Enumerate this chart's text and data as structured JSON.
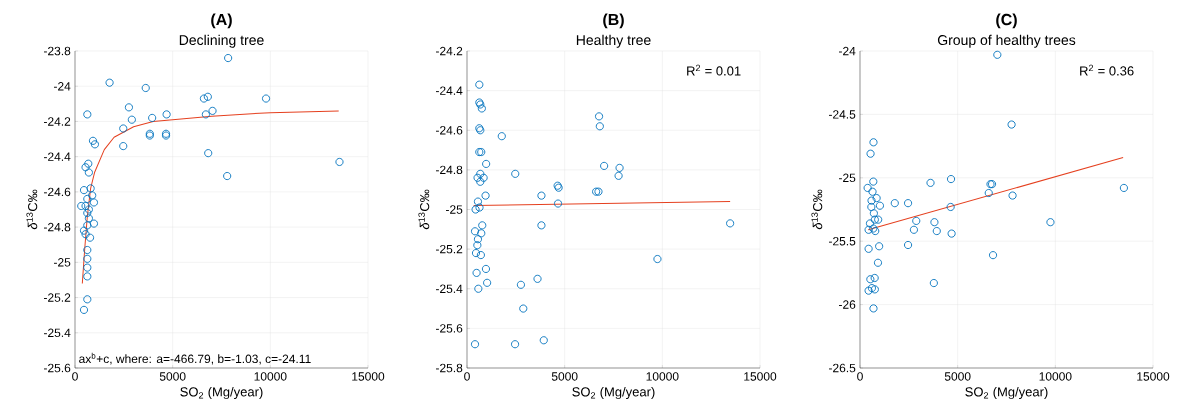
{
  "chart_data": [
    {
      "type": "scatter",
      "title": "(A)",
      "subtitle": "Declining tree",
      "xlabel": "SO$_{2}$ (Mg/year)",
      "ylabel": "*δ*$^{13}$C‰",
      "xlim": [
        0,
        15000
      ],
      "xticks": [
        0,
        5000,
        10000,
        15000
      ],
      "ylim": [
        -25.6,
        -23.8
      ],
      "yticks": [
        -25.6,
        -25.4,
        -25.2,
        -25,
        -24.8,
        -24.6,
        -24.4,
        -24.2,
        -24,
        -23.8
      ],
      "grid": true,
      "legend": "bottom left",
      "series": [
        {
          "marker": "circle",
          "name": "ax$^{b}$+c, where: a=-466.79, b=-1.03, c=-24.11",
          "color": "#0072bd",
          "x": [
            1770,
            3620,
            7840,
            9780,
            13540,
            7790,
            6820,
            6600,
            6800,
            6700,
            7040,
            4690,
            3950,
            3830,
            3830,
            4660,
            4660,
            2760,
            2910,
            2470,
            2470,
            630,
            920,
            1020,
            680,
            540,
            710,
            460,
            800,
            320,
            970,
            880,
            630,
            630,
            710,
            970,
            460,
            540,
            770,
            630,
            630,
            630,
            630,
            630,
            630,
            460,
            540,
            710
          ],
          "values": [
            -23.98,
            -24.01,
            -23.84,
            -24.07,
            -24.43,
            -24.51,
            -24.38,
            -24.07,
            -24.06,
            -24.16,
            -24.14,
            -24.16,
            -24.18,
            -24.27,
            -24.28,
            -24.27,
            -24.28,
            -24.12,
            -24.19,
            -24.24,
            -24.34,
            -24.16,
            -24.31,
            -24.33,
            -24.44,
            -24.46,
            -24.49,
            -24.59,
            -24.58,
            -24.68,
            -24.66,
            -24.62,
            -24.64,
            -24.72,
            -24.75,
            -24.78,
            -24.82,
            -24.84,
            -24.86,
            -24.79,
            -24.93,
            -24.98,
            -25.03,
            -25.08,
            -25.21,
            -25.27,
            -24.68,
            -24.7
          ]
        },
        {
          "type": "line",
          "marker": "none",
          "color": "#e5401f",
          "x": [
            374,
            500,
            630,
            800,
            1000,
            1500,
            2000,
            3000,
            4000,
            5000,
            7000,
            10000,
            13500
          ],
          "values": [
            -25.12,
            -24.92,
            -24.74,
            -24.58,
            -24.49,
            -24.36,
            -24.29,
            -24.23,
            -24.2,
            -24.19,
            -24.17,
            -24.15,
            -24.14
          ]
        }
      ]
    },
    {
      "type": "scatter",
      "title": "(B)",
      "subtitle": "Healthy tree",
      "xlabel": "SO$_{2}$ (Mg/year)",
      "ylabel": "*δ*$^{13}$C‰",
      "xlim": [
        0,
        15000
      ],
      "xticks": [
        0,
        5000,
        10000,
        15000
      ],
      "ylim": [
        -25.8,
        -24.2
      ],
      "yticks": [
        -25.8,
        -25.6,
        -25.4,
        -25.2,
        -25,
        -24.8,
        -24.6,
        -24.4,
        -24.2
      ],
      "grid": true,
      "annotations": [
        "R$^{2}$ = 0.01"
      ],
      "series": [
        {
          "marker": "circle",
          "color": "#0072bd",
          "x": [
            630,
            630,
            680,
            760,
            630,
            680,
            1780,
            630,
            730,
            980,
            2470,
            680,
            540,
            850,
            680,
            950,
            560,
            640,
            440,
            780,
            410,
            730,
            560,
            530,
            460,
            710,
            490,
            970,
            1030,
            580,
            2760,
            3610,
            2880,
            410,
            2460,
            3930,
            3810,
            3810,
            4640,
            4690,
            4660,
            6760,
            6800,
            7020,
            6610,
            6730,
            7810,
            7760,
            9750,
            13470
          ],
          "values": [
            -24.37,
            -24.46,
            -24.47,
            -24.49,
            -24.59,
            -24.6,
            -24.63,
            -24.71,
            -24.71,
            -24.77,
            -24.82,
            -24.82,
            -24.84,
            -24.84,
            -24.86,
            -24.93,
            -24.96,
            -24.99,
            -25.0,
            -25.08,
            -25.11,
            -25.12,
            -25.15,
            -25.18,
            -25.22,
            -25.23,
            -25.32,
            -25.3,
            -25.37,
            -25.4,
            -25.38,
            -25.35,
            -25.5,
            -25.68,
            -25.68,
            -25.66,
            -24.93,
            -25.08,
            -24.88,
            -24.89,
            -24.97,
            -24.53,
            -24.58,
            -24.78,
            -24.91,
            -24.91,
            -24.79,
            -24.83,
            -25.25,
            -25.07
          ]
        },
        {
          "type": "line",
          "marker": "none",
          "color": "#e5401f",
          "x": [
            340,
            13470
          ],
          "values": [
            -24.98,
            -24.96
          ]
        }
      ]
    },
    {
      "type": "scatter",
      "title": "(C)",
      "subtitle": "Group of healthy trees",
      "xlabel": "SO$_{2}$ (Mg/year)",
      "ylabel": "*δ*$^{13}$C‰",
      "xlim": [
        0,
        15000
      ],
      "xticks": [
        0,
        5000,
        10000,
        15000
      ],
      "ylim": [
        -26.5,
        -24
      ],
      "yticks": [
        -26.5,
        -26,
        -25.5,
        -25,
        -24.5,
        -24
      ],
      "grid": true,
      "annotations": [
        "R$^{2}$ = 0.36"
      ],
      "series": [
        {
          "marker": "circle",
          "color": "#0072bd",
          "x": [
            7030,
            7760,
            690,
            540,
            680,
            390,
            640,
            590,
            850,
            1020,
            580,
            1780,
            2460,
            3610,
            4660,
            4640,
            6680,
            6760,
            6590,
            7810,
            13510,
            9750,
            3810,
            2880,
            2760,
            3930,
            4690,
            2460,
            6810,
            3780,
            710,
            760,
            930,
            510,
            440,
            680,
            780,
            440,
            980,
            920,
            530,
            750,
            440,
            610,
            760,
            690
          ],
          "values": [
            -24.03,
            -24.58,
            -24.72,
            -24.81,
            -25.03,
            -25.08,
            -25.11,
            -25.18,
            -25.16,
            -25.22,
            -25.23,
            -25.2,
            -25.2,
            -25.04,
            -25.01,
            -25.23,
            -25.05,
            -25.05,
            -25.12,
            -25.14,
            -25.08,
            -25.35,
            -25.35,
            -25.34,
            -25.41,
            -25.42,
            -25.44,
            -25.53,
            -25.61,
            -25.83,
            -25.28,
            -25.33,
            -25.33,
            -25.36,
            -25.41,
            -25.4,
            -25.42,
            -25.56,
            -25.54,
            -25.67,
            -25.8,
            -25.79,
            -25.89,
            -25.87,
            -25.88,
            -26.03
          ]
        },
        {
          "type": "line",
          "marker": "none",
          "color": "#e5401f",
          "x": [
            420,
            13470
          ],
          "values": [
            -25.41,
            -24.84
          ]
        }
      ]
    }
  ]
}
